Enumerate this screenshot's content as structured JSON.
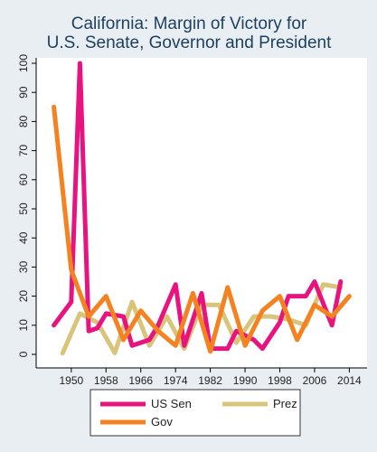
{
  "chart_data": {
    "type": "line",
    "title": [
      "California: Margin of Victory for",
      "U.S. Senate, Governor and President"
    ],
    "xlabel": "",
    "ylabel": "",
    "xlim": [
      1944,
      2016
    ],
    "ylim": [
      0,
      100
    ],
    "x_ticks": [
      1950,
      1958,
      1966,
      1974,
      1982,
      1990,
      1998,
      2006,
      2014
    ],
    "y_ticks": [
      0,
      10,
      20,
      30,
      40,
      50,
      60,
      70,
      80,
      90,
      100
    ],
    "grid": false,
    "legend_position": "bottom",
    "series": [
      {
        "name": "US Sen",
        "color": "#e8137e",
        "x": [
          1946,
          1950,
          1952,
          1954,
          1956,
          1958,
          1962,
          1964,
          1968,
          1970,
          1974,
          1976,
          1980,
          1982,
          1986,
          1988,
          1992,
          1994,
          1998,
          2000,
          2004,
          2006,
          2010,
          2012
        ],
        "values": [
          10,
          18,
          100,
          8,
          9,
          14,
          13,
          3,
          5,
          10,
          24,
          3,
          21,
          2,
          2,
          8,
          5,
          2,
          11,
          20,
          20,
          25,
          10,
          25
        ]
      },
      {
        "name": "Prez",
        "color": "#d8c47a",
        "x": [
          1948,
          1952,
          1956,
          1960,
          1964,
          1968,
          1972,
          1976,
          1980,
          1984,
          1988,
          1992,
          1996,
          2000,
          2004,
          2008,
          2012
        ],
        "values": [
          0.4,
          14,
          11,
          0.5,
          18,
          3,
          13,
          2,
          17,
          17,
          4,
          13,
          13,
          12,
          10,
          24,
          23
        ]
      },
      {
        "name": "Gov",
        "color": "#f58220",
        "x": [
          1946,
          1950,
          1954,
          1958,
          1962,
          1966,
          1970,
          1974,
          1978,
          1982,
          1986,
          1990,
          1994,
          1998,
          2002,
          2006,
          2010,
          2014
        ],
        "values": [
          85,
          29,
          13,
          20,
          5,
          15,
          8,
          3,
          21,
          1,
          23,
          3,
          15,
          20,
          5,
          17,
          13,
          20
        ]
      }
    ]
  }
}
